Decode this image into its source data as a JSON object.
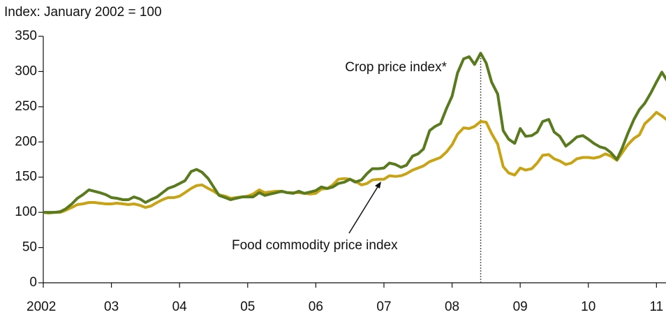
{
  "chart_data": {
    "type": "line",
    "y_axis_label": "Index: January 2002 = 100",
    "annotations": [
      "Crop price index*",
      "Food commodity price index"
    ],
    "x": [
      2002,
      2002.08,
      2002.17,
      2002.25,
      2002.33,
      2002.42,
      2002.5,
      2002.58,
      2002.67,
      2002.75,
      2002.83,
      2002.92,
      2003,
      2003.08,
      2003.17,
      2003.25,
      2003.33,
      2003.42,
      2003.5,
      2003.58,
      2003.67,
      2003.75,
      2003.83,
      2003.92,
      2004,
      2004.08,
      2004.17,
      2004.25,
      2004.33,
      2004.42,
      2004.5,
      2004.58,
      2004.67,
      2004.75,
      2004.83,
      2004.92,
      2005,
      2005.08,
      2005.17,
      2005.25,
      2005.33,
      2005.42,
      2005.5,
      2005.58,
      2005.67,
      2005.75,
      2005.83,
      2005.92,
      2006,
      2006.08,
      2006.17,
      2006.25,
      2006.33,
      2006.42,
      2006.5,
      2006.58,
      2006.67,
      2006.75,
      2006.83,
      2006.92,
      2007,
      2007.08,
      2007.17,
      2007.25,
      2007.33,
      2007.42,
      2007.5,
      2007.58,
      2007.67,
      2007.75,
      2007.83,
      2007.92,
      2008,
      2008.08,
      2008.17,
      2008.25,
      2008.33,
      2008.42,
      2008.5,
      2008.58,
      2008.67,
      2008.75,
      2008.83,
      2008.92,
      2009,
      2009.08,
      2009.17,
      2009.25,
      2009.33,
      2009.42,
      2009.5,
      2009.58,
      2009.67,
      2009.75,
      2009.83,
      2009.92,
      2010,
      2010.08,
      2010.17,
      2010.25,
      2010.33,
      2010.42,
      2010.5,
      2010.58,
      2010.67,
      2010.75,
      2010.83,
      2010.92,
      2011,
      2011.08,
      2011.17
    ],
    "series": [
      {
        "name": "Crop price index*",
        "color": "#5a7a1e",
        "values": [
          100,
          100,
          100,
          101,
          105,
          112,
          120,
          125,
          132,
          130,
          128,
          125,
          121,
          120,
          118,
          118,
          122,
          119,
          114,
          118,
          122,
          128,
          134,
          137,
          141,
          145,
          158,
          161,
          157,
          148,
          136,
          124,
          121,
          118,
          120,
          122,
          122,
          122,
          128,
          124,
          126,
          128,
          130,
          128,
          127,
          130,
          127,
          129,
          131,
          136,
          134,
          136,
          141,
          143,
          147,
          143,
          146,
          155,
          162,
          162,
          163,
          170,
          168,
          164,
          167,
          180,
          183,
          190,
          216,
          222,
          226,
          248,
          265,
          298,
          318,
          321,
          310,
          326,
          312,
          285,
          268,
          216,
          204,
          198,
          219,
          208,
          209,
          214,
          229,
          232,
          214,
          208,
          194,
          200,
          207,
          209,
          204,
          198,
          193,
          191,
          185,
          175,
          192,
          212,
          232,
          246,
          255,
          270,
          285,
          299,
          285
        ]
      },
      {
        "name": "Food commodity price index",
        "color": "#c8a415",
        "values": [
          100,
          99,
          100,
          100,
          103,
          107,
          111,
          112,
          114,
          114,
          113,
          112,
          112,
          113,
          112,
          111,
          112,
          110,
          107,
          109,
          114,
          118,
          121,
          121,
          123,
          128,
          134,
          138,
          139,
          134,
          130,
          125,
          123,
          120,
          121,
          122,
          123,
          126,
          132,
          128,
          129,
          130,
          130,
          128,
          128,
          128,
          127,
          126,
          127,
          133,
          134,
          139,
          147,
          148,
          147,
          144,
          139,
          141,
          146,
          147,
          147,
          152,
          151,
          152,
          155,
          160,
          163,
          166,
          172,
          175,
          178,
          186,
          196,
          211,
          220,
          219,
          222,
          229,
          228,
          212,
          197,
          165,
          156,
          153,
          163,
          160,
          162,
          170,
          181,
          182,
          176,
          173,
          168,
          170,
          176,
          178,
          178,
          177,
          179,
          183,
          180,
          174,
          185,
          196,
          205,
          210,
          226,
          234,
          242,
          237,
          230
        ]
      }
    ],
    "vline": 2008.42,
    "xlim": [
      2002,
      2011.14
    ],
    "xticks": [
      2002,
      {
        "value": 2003,
        "label": "03"
      },
      {
        "value": 2004,
        "label": "04"
      },
      {
        "value": 2005,
        "label": "05"
      },
      {
        "value": 2006,
        "label": "06"
      },
      {
        "value": 2007,
        "label": "07"
      },
      {
        "value": 2008,
        "label": "08"
      },
      {
        "value": 2009,
        "label": "09"
      },
      {
        "value": 2010,
        "label": "10"
      },
      {
        "value": 2011,
        "label": "11"
      }
    ],
    "ylim": [
      0,
      350
    ],
    "yticks": [
      0,
      50,
      100,
      150,
      200,
      250,
      300,
      350
    ],
    "grid": false
  }
}
